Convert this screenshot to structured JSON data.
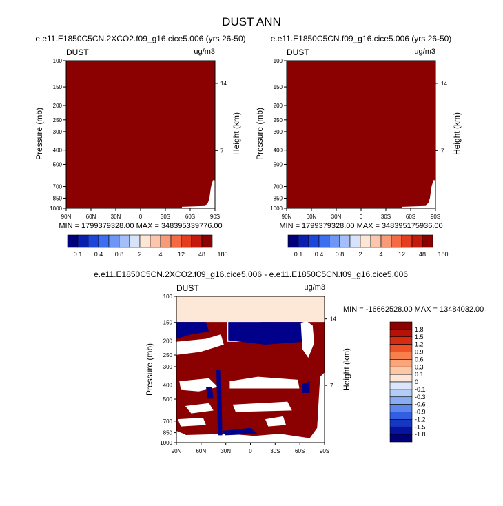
{
  "main_title": "DUST ANN",
  "colors": {
    "frame": "#000000",
    "dark_red": "#8b0000",
    "dark_blue": "#00008b",
    "light": "#fde8d7",
    "white": "#ffffff"
  },
  "chart_data": [
    {
      "type": "heatmap",
      "title": "e.e11.E1850C5CN.2XCO2.f09_g16.cice5.006 (yrs 26-50)",
      "corner_left": "DUST",
      "corner_right": "ug/m3",
      "ylabel": "Pressure (mb)",
      "ylabel_right": "Height (km)",
      "x_ticks": [
        "90N",
        "60N",
        "30N",
        "0",
        "30S",
        "60S",
        "90S"
      ],
      "y_ticks": [
        "100",
        "150",
        "200",
        "250",
        "300",
        "400",
        "500",
        "700",
        "850",
        "1000"
      ],
      "y_ticks_right": [
        "14",
        "7"
      ],
      "stats": "MIN = 1799379328.00  MAX = 348395339776.00",
      "fill": "dark_red"
    },
    {
      "type": "heatmap",
      "title": "e.e11.E1850C5CN.f09_g16.cice5.006 (yrs 26-50)",
      "corner_left": "DUST",
      "corner_right": "ug/m3",
      "ylabel": "Pressure (mb)",
      "ylabel_right": "Height (km)",
      "x_ticks": [
        "90N",
        "60N",
        "30N",
        "0",
        "30S",
        "60S",
        "90S"
      ],
      "y_ticks": [
        "100",
        "150",
        "200",
        "250",
        "300",
        "400",
        "500",
        "700",
        "850",
        "1000"
      ],
      "y_ticks_right": [
        "14",
        "7"
      ],
      "stats": "MIN = 1799379328.00  MAX = 348395175936.00",
      "fill": "dark_red"
    },
    {
      "type": "heatmap",
      "title": "e.e11.E1850C5CN.2XCO2.f09_g16.cice5.006 - e.e11.E1850C5CN.f09_g16.cice5.006",
      "corner_left": "DUST",
      "corner_right": "ug/m3",
      "ylabel": "Pressure (mb)",
      "ylabel_right": "Height (km)",
      "x_ticks": [
        "90N",
        "60N",
        "30N",
        "0",
        "30S",
        "60S",
        "90S"
      ],
      "y_ticks": [
        "100",
        "150",
        "200",
        "250",
        "300",
        "400",
        "500",
        "700",
        "850",
        "1000"
      ],
      "y_ticks_right": [
        "14",
        "7"
      ],
      "stats": "MIN = -16662528.00  MAX = 13484032.00"
    }
  ],
  "colorbar_top": {
    "colors": [
      "#00007a",
      "#0a1fb0",
      "#1c46d9",
      "#3d6ef0",
      "#6e97f5",
      "#a3bef8",
      "#d6e3fb",
      "#fde6d6",
      "#fbc6ac",
      "#f89a77",
      "#f46a45",
      "#e63c1e",
      "#c41a0c",
      "#8b0000"
    ],
    "labels": [
      "0.1",
      "0.4",
      "0.8",
      "2",
      "4",
      "12",
      "48",
      "180"
    ]
  },
  "colorbar_diff": {
    "colors": [
      "#8b0000",
      "#b51208",
      "#d42d13",
      "#ee5327",
      "#f8804c",
      "#fba57a",
      "#fcc9a8",
      "#fde6d6",
      "#dbe6fb",
      "#b3ccf8",
      "#8aacf3",
      "#5e87ee",
      "#325ee1",
      "#1637c4",
      "#0513a0",
      "#00007a"
    ],
    "labels": [
      "1.8",
      "1.5",
      "1.2",
      "0.9",
      "0.6",
      "0.3",
      "0.1",
      "0",
      "-0.1",
      "-0.3",
      "-0.6",
      "-0.9",
      "-1.2",
      "-1.5",
      "-1.8"
    ]
  }
}
